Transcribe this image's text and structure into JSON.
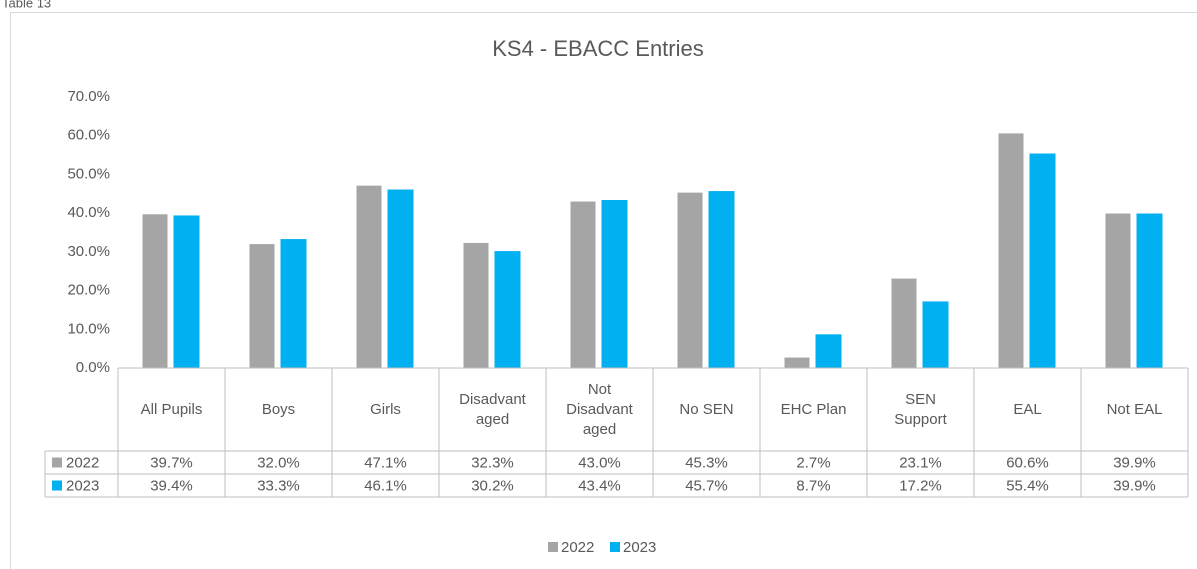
{
  "caption": "Table 13",
  "chart_data": {
    "type": "bar",
    "title": "KS4 - EBACC Entries",
    "categories": [
      "All Pupils",
      "Boys",
      "Girls",
      "Disadvant aged",
      "Not Disadvant aged",
      "No SEN",
      "EHC Plan",
      "SEN Support",
      "EAL",
      "Not EAL"
    ],
    "series": [
      {
        "name": "2022",
        "color": "#a5a5a5",
        "values": [
          39.7,
          32.0,
          47.1,
          32.3,
          43.0,
          45.3,
          2.7,
          23.1,
          60.6,
          39.9
        ],
        "value_labels": [
          "39.7%",
          "32.0%",
          "47.1%",
          "32.3%",
          "43.0%",
          "45.3%",
          "2.7%",
          "23.1%",
          "60.6%",
          "39.9%"
        ]
      },
      {
        "name": "2023",
        "color": "#00b0f0",
        "values": [
          39.4,
          33.3,
          46.1,
          30.2,
          43.4,
          45.7,
          8.7,
          17.2,
          55.4,
          39.9
        ],
        "value_labels": [
          "39.4%",
          "33.3%",
          "46.1%",
          "30.2%",
          "43.4%",
          "45.7%",
          "8.7%",
          "17.2%",
          "55.4%",
          "39.9%"
        ]
      }
    ],
    "ylim": [
      0,
      70
    ],
    "yticks": [
      {
        "value": 0,
        "label": "0.0%"
      },
      {
        "value": 10,
        "label": "10.0%"
      },
      {
        "value": 20,
        "label": "20.0%"
      },
      {
        "value": 30,
        "label": "30.0%"
      },
      {
        "value": 40,
        "label": "40.0%"
      },
      {
        "value": 50,
        "label": "50.0%"
      },
      {
        "value": 60,
        "label": "60.0%"
      },
      {
        "value": 70,
        "label": "70.0%"
      }
    ],
    "grid": false,
    "legend": "bottom"
  }
}
